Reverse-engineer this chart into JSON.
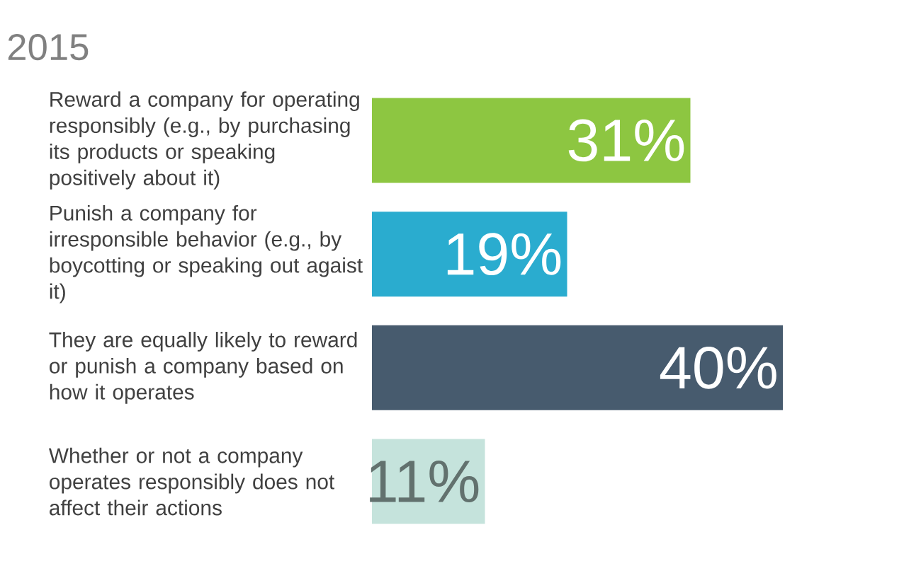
{
  "chart_data": {
    "type": "bar",
    "orientation": "horizontal",
    "title": "2015",
    "categories": [
      "Reward a company for operating responsibly (e.g., by purchasing its products or speaking positively about it)",
      "Punish a company for irresponsible behavior (e.g., by boycotting or speaking out agaist it)",
      "They are equally likely to reward or punish a company based on how it operates",
      "Whether or not a company operates responsibly does not affect their actions"
    ],
    "values": [
      31,
      19,
      40,
      11
    ],
    "value_labels": [
      "31%",
      "19%",
      "40%",
      "11%"
    ],
    "colors": [
      "#8dc641",
      "#2aaccf",
      "#475b6e",
      "#c5e3dc"
    ]
  }
}
